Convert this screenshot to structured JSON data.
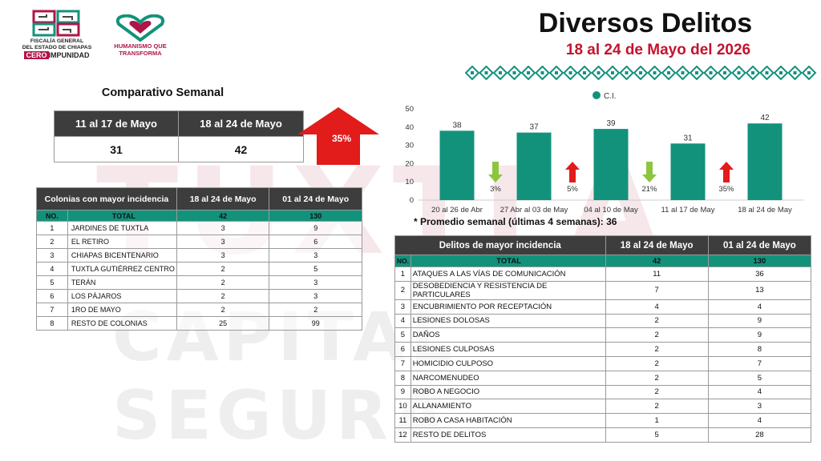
{
  "watermark": {
    "line1": "TUXTLA",
    "line2": "CAPITAL SEGURA"
  },
  "logos": {
    "fiscalia_line1": "FISCALÍA GENERAL",
    "fiscalia_line2": "DEL ESTADO DE CHIAPAS",
    "fiscalia_tag_a": "CERO",
    "fiscalia_tag_b": "IMPUNIDAD",
    "humanismo_line1": "HUMANISMO QUE",
    "humanismo_line2": "TRANSFORMA"
  },
  "header": {
    "title": "Diversos Delitos",
    "subtitle": "18 al 24 de Mayo del 2026"
  },
  "comparativo": {
    "title": "Comparativo Semanal",
    "headers": [
      "11 al 17 de Mayo",
      "18 al 24 de Mayo"
    ],
    "values": [
      "31",
      "42"
    ],
    "change": "35%"
  },
  "colonias": {
    "headers": [
      "Colonias  con mayor incidencia",
      "18 al 24 de Mayo",
      "01 al 24 de Mayo"
    ],
    "total": {
      "no": "NO.",
      "label": "TOTAL",
      "week": "42",
      "month": "130"
    },
    "rows": [
      {
        "no": "1",
        "name": "JARDINES DE TUXTLA",
        "week": "3",
        "month": "9"
      },
      {
        "no": "2",
        "name": "EL RETIRO",
        "week": "3",
        "month": "6"
      },
      {
        "no": "3",
        "name": "CHIAPAS BICENTENARIO",
        "week": "3",
        "month": "3"
      },
      {
        "no": "4",
        "name": "TUXTLA GUTIÉRREZ CENTRO",
        "week": "2",
        "month": "5"
      },
      {
        "no": "5",
        "name": "TERÁN",
        "week": "2",
        "month": "3"
      },
      {
        "no": "6",
        "name": "LOS PÁJAROS",
        "week": "2",
        "month": "3"
      },
      {
        "no": "7",
        "name": "1RO DE MAYO",
        "week": "2",
        "month": "2"
      },
      {
        "no": "8",
        "name": "RESTO DE COLONIAS",
        "week": "25",
        "month": "99"
      }
    ]
  },
  "chart_data": {
    "type": "bar",
    "legend": "C.I.",
    "categories": [
      "20 al 26 de Abr",
      "27 Abr al 03 de May",
      "04 al 10 de May",
      "11 al 17 de May",
      "18 al 24 de May"
    ],
    "values": [
      38,
      37,
      39,
      31,
      42
    ],
    "ylim": [
      0,
      50
    ],
    "yticks": [
      0,
      10,
      20,
      30,
      40,
      50
    ],
    "bar_color": "#13927b",
    "changes": [
      {
        "label": "3%",
        "direction": "down"
      },
      {
        "label": "5%",
        "direction": "up"
      },
      {
        "label": "21%",
        "direction": "down"
      },
      {
        "label": "35%",
        "direction": "up"
      }
    ],
    "grid": false,
    "legend_position": "top"
  },
  "promedio": "* Promedio semanal (últimas 4 semanas): 36",
  "delitos": {
    "headers": [
      "Delitos de mayor incidencia",
      "18 al 24 de Mayo",
      "01 al 24 de Mayo"
    ],
    "total": {
      "no": "NO.",
      "label": "TOTAL",
      "week": "42",
      "month": "130"
    },
    "rows": [
      {
        "no": "1",
        "name": "ATAQUES A LAS VÍAS DE COMUNICACIÓN",
        "week": "11",
        "month": "36"
      },
      {
        "no": "2",
        "name": "DESOBEDIENCIA Y RESISTENCIA DE PARTICULARES",
        "week": "7",
        "month": "13"
      },
      {
        "no": "3",
        "name": "ENCUBRIMIENTO POR RECEPTACIÓN",
        "week": "4",
        "month": "4"
      },
      {
        "no": "4",
        "name": "LESIONES DOLOSAS",
        "week": "2",
        "month": "9"
      },
      {
        "no": "5",
        "name": "DAÑOS",
        "week": "2",
        "month": "9"
      },
      {
        "no": "6",
        "name": "LESIONES CULPOSAS",
        "week": "2",
        "month": "8"
      },
      {
        "no": "7",
        "name": "HOMICIDIO CULPOSO",
        "week": "2",
        "month": "7"
      },
      {
        "no": "8",
        "name": "NARCOMENUDEO",
        "week": "2",
        "month": "5"
      },
      {
        "no": "9",
        "name": "ROBO A NEGOCIO",
        "week": "2",
        "month": "4"
      },
      {
        "no": "10",
        "name": "ALLANAMIENTO",
        "week": "2",
        "month": "3"
      },
      {
        "no": "11",
        "name": "ROBO A CASA HABITACIÓN",
        "week": "1",
        "month": "4"
      },
      {
        "no": "12",
        "name": "RESTO DE DELITOS",
        "week": "5",
        "month": "28"
      }
    ]
  },
  "colors": {
    "teal": "#13927b",
    "red": "#e21b1b",
    "dark": "#3d3d3d",
    "magenta": "#b0154a",
    "green_arrow": "#8cc63f"
  }
}
